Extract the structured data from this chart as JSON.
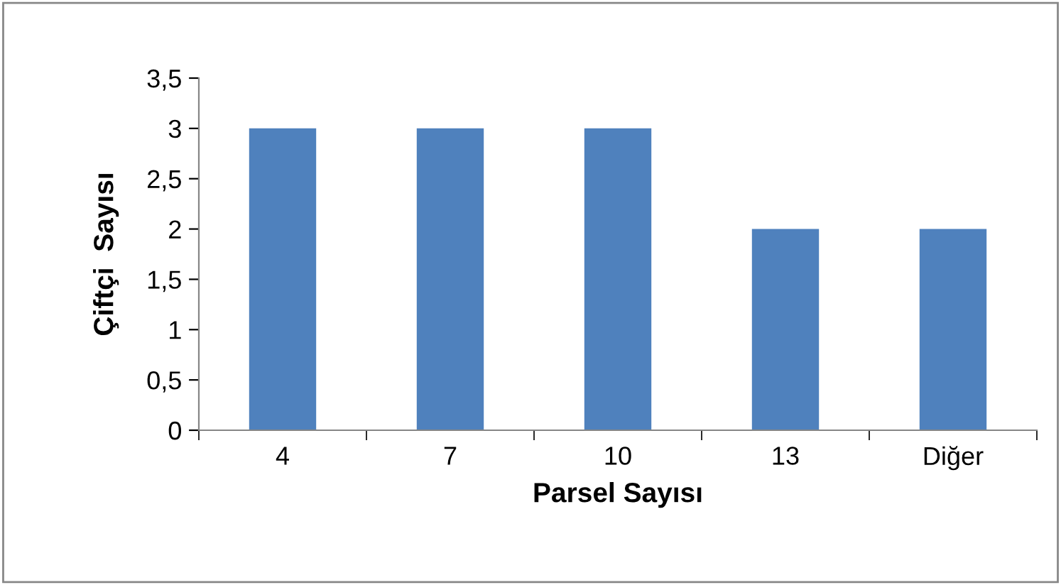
{
  "chart_data": {
    "type": "bar",
    "xlabel": "Parsel Sayısı",
    "ylabel": "Çiftçi  Sayısı",
    "categories": [
      "4",
      "7",
      "10",
      "13",
      "Diğer"
    ],
    "values": [
      3,
      3,
      3,
      2,
      2
    ],
    "color": "#4f81bd",
    "ylim": [
      0,
      3.5
    ],
    "yticks": [
      0,
      {
        "value": 0.5,
        "label": "0,5"
      },
      1,
      {
        "value": 1.5,
        "label": "1,5"
      },
      2,
      {
        "value": 2.5,
        "label": "2,5"
      },
      3,
      {
        "value": 3.5,
        "label": "3,5"
      }
    ],
    "grid": false,
    "legend": false
  }
}
